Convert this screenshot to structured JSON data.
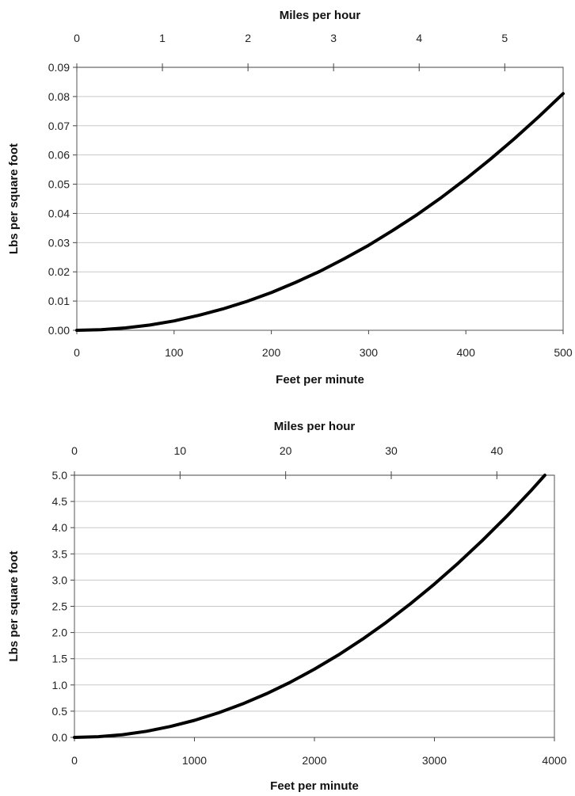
{
  "chart_data": [
    {
      "type": "line",
      "title": "",
      "xlabel": "Feet per minute",
      "x2label": "Miles per hour",
      "ylabel": "Lbs per square foot",
      "xlim": [
        0,
        500
      ],
      "x2lim": [
        0,
        5.682
      ],
      "ylim": [
        0,
        0.09
      ],
      "x_ticks": [
        "0",
        "100",
        "200",
        "300",
        "400",
        "500"
      ],
      "x2_ticks": [
        "0",
        "1",
        "2",
        "3",
        "4",
        "5"
      ],
      "y_ticks": [
        "0.00",
        "0.01",
        "0.02",
        "0.03",
        "0.04",
        "0.05",
        "0.06",
        "0.07",
        "0.08",
        "0.09"
      ],
      "grid": true,
      "legend": "none",
      "line_color": "#000000",
      "series": [
        {
          "x": [
            0,
            25,
            50,
            75,
            100,
            125,
            150,
            175,
            200,
            225,
            250,
            275,
            300,
            325,
            350,
            375,
            400,
            425,
            450,
            475,
            500
          ],
          "values": [
            0.0,
            0.0002,
            0.0008,
            0.0018,
            0.0032,
            0.0051,
            0.0073,
            0.0099,
            0.0129,
            0.0164,
            0.0202,
            0.0245,
            0.0291,
            0.0342,
            0.0396,
            0.0455,
            0.0518,
            0.0585,
            0.0656,
            0.0731,
            0.081
          ]
        }
      ]
    },
    {
      "type": "line",
      "title": "",
      "xlabel": "Feet per minute",
      "x2label": "Miles per hour",
      "ylabel": "Lbs per square foot",
      "xlim": [
        0,
        4000
      ],
      "x2lim": [
        0,
        45.45
      ],
      "ylim": [
        0,
        5.0
      ],
      "x_ticks": [
        "0",
        "1000",
        "2000",
        "3000",
        "4000"
      ],
      "x2_ticks": [
        "0",
        "10",
        "20",
        "30",
        "40"
      ],
      "y_ticks": [
        "0.0",
        "0.5",
        "1.0",
        "1.5",
        "2.0",
        "2.5",
        "3.0",
        "3.5",
        "4.0",
        "4.5",
        "5.0"
      ],
      "grid": true,
      "legend": "none",
      "line_color": "#000000",
      "series": [
        {
          "x": [
            0,
            200,
            400,
            600,
            800,
            1000,
            1200,
            1400,
            1600,
            1800,
            2000,
            2200,
            2400,
            2600,
            2800,
            3000,
            3200,
            3400,
            3600,
            3800,
            3920
          ],
          "values": [
            0.0,
            0.013,
            0.052,
            0.117,
            0.208,
            0.325,
            0.468,
            0.637,
            0.832,
            1.053,
            1.3,
            1.573,
            1.872,
            2.197,
            2.548,
            2.925,
            3.328,
            3.757,
            4.212,
            4.693,
            5.0
          ]
        }
      ]
    }
  ]
}
